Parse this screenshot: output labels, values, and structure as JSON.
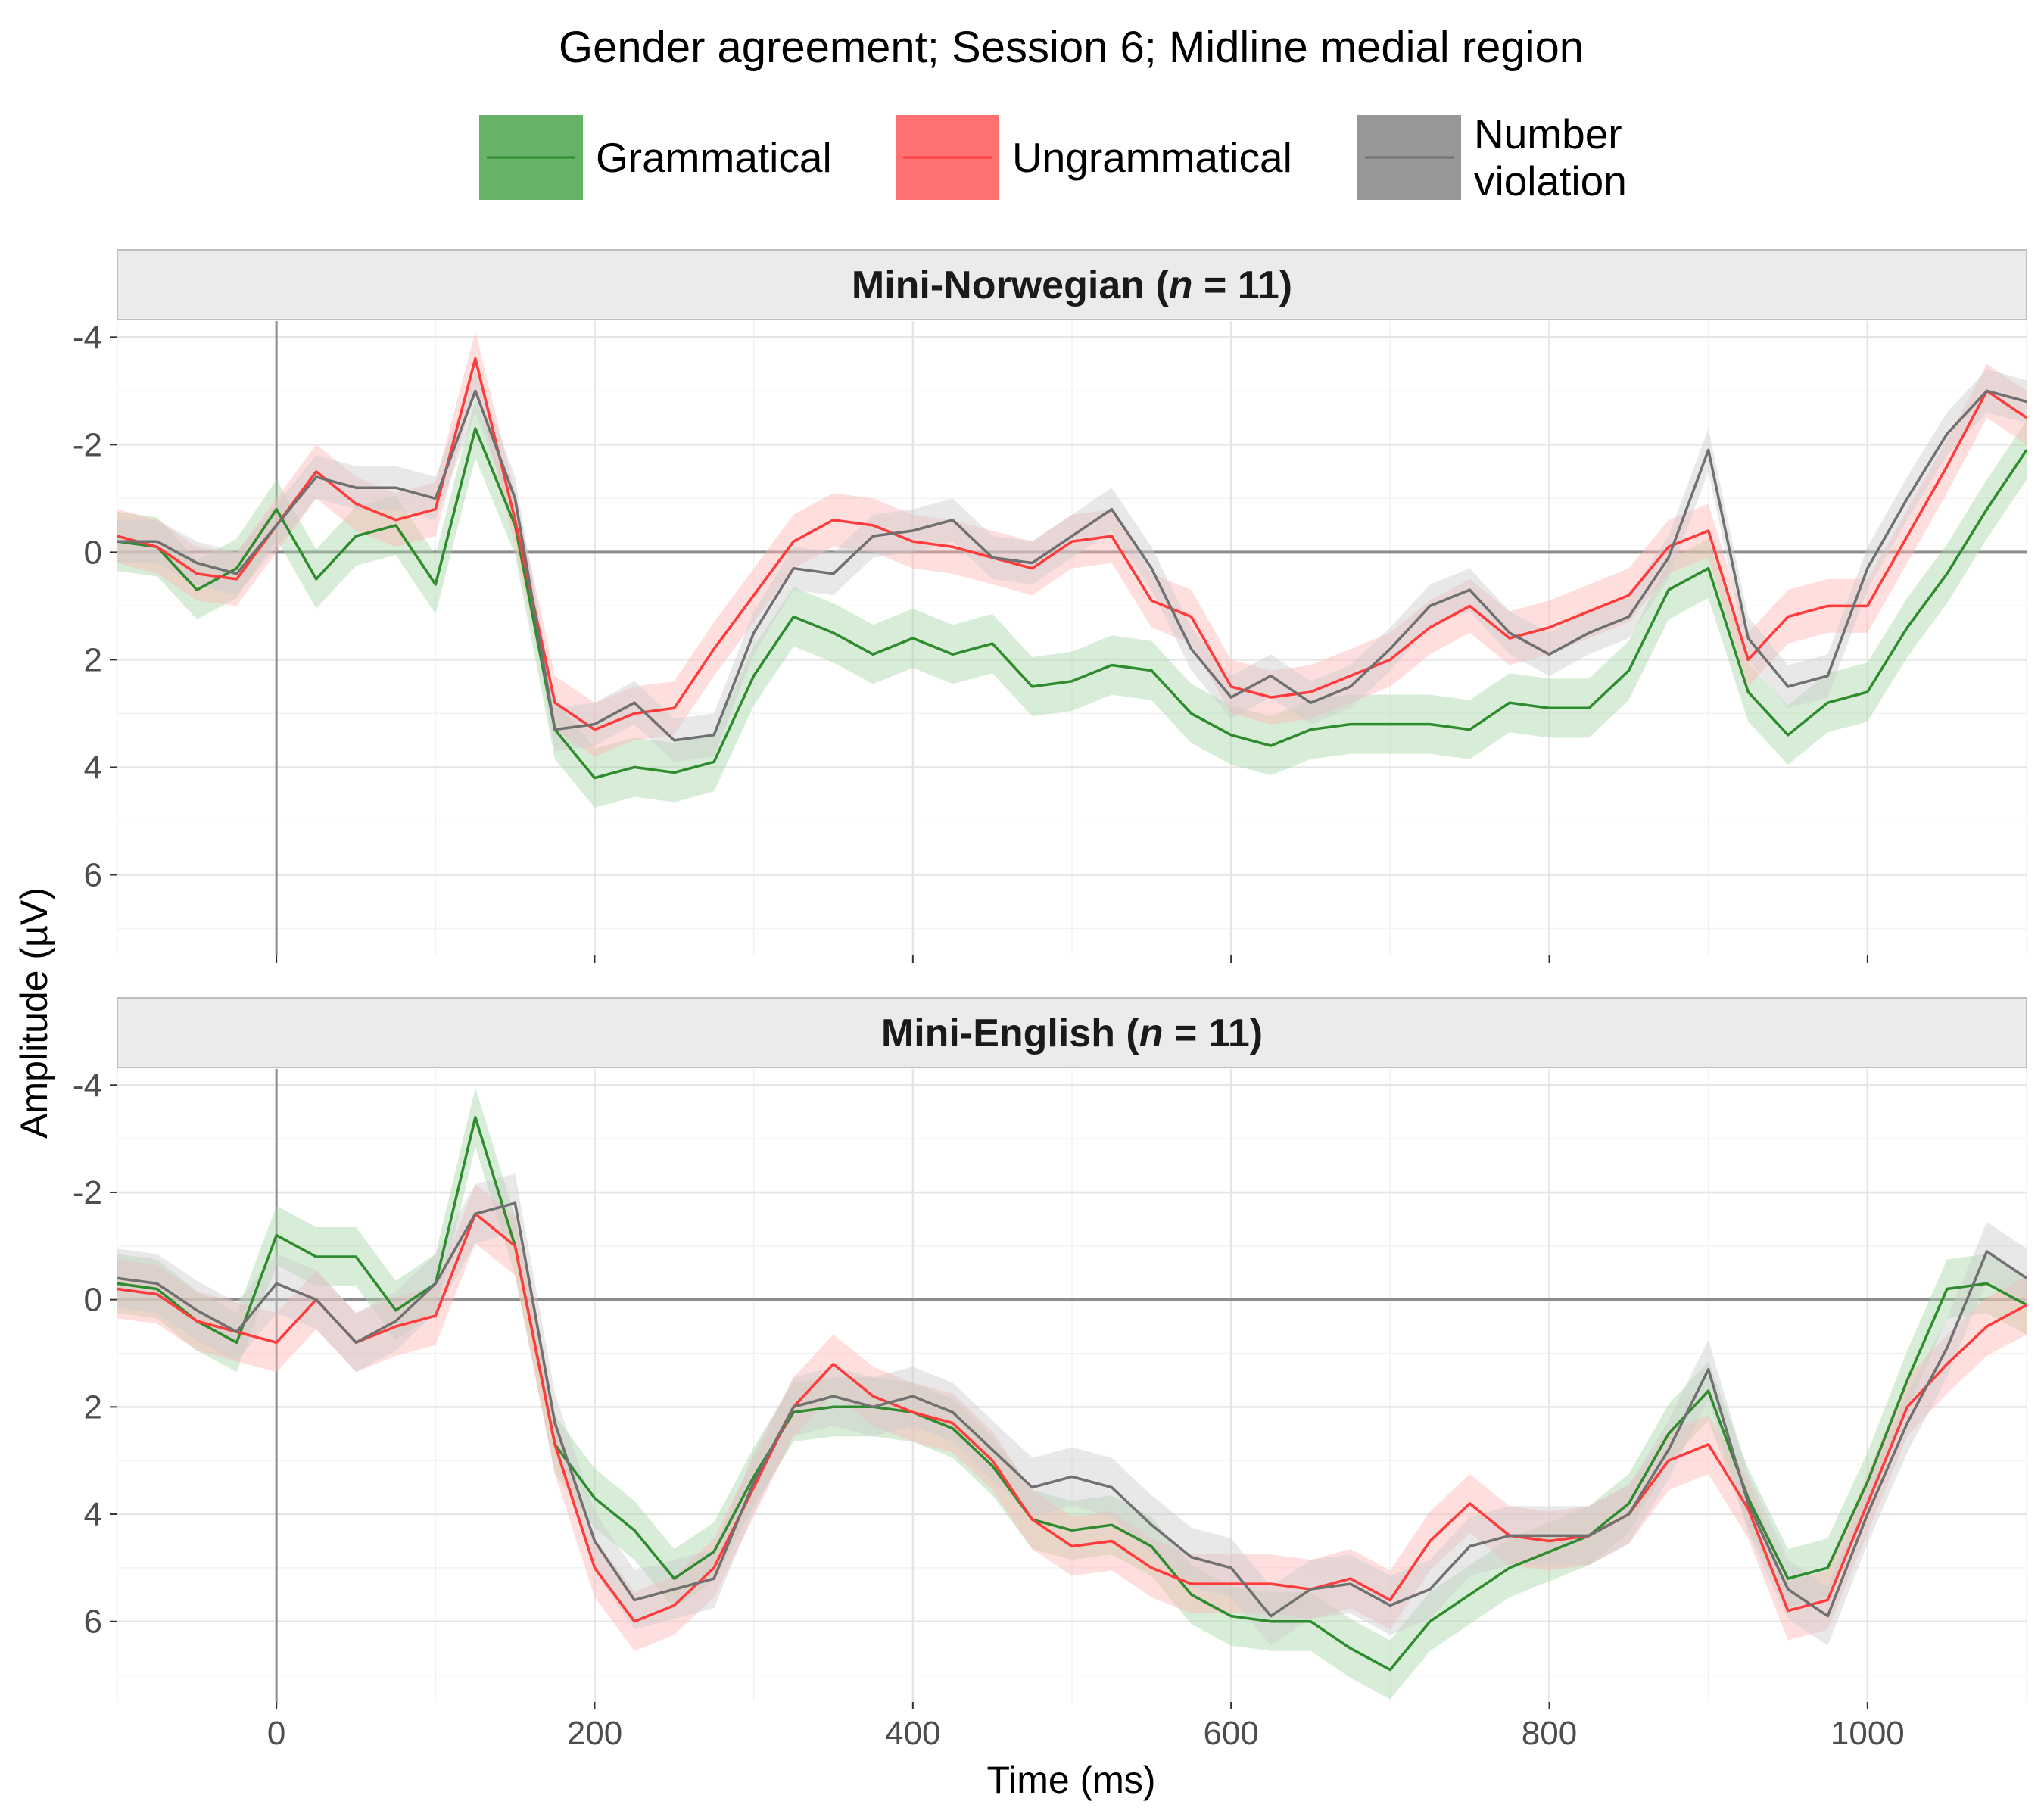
{
  "chart_data": {
    "type": "line",
    "title": "Gender agreement; Session 6; Midline medial region",
    "xlabel": "Time (ms)",
    "ylabel": "Amplitude (µV)",
    "xlim": [
      -100,
      1100
    ],
    "ylim_reversed": [
      -4.3,
      7.5
    ],
    "y_axis_reversed": true,
    "x_ticks": [
      0,
      200,
      400,
      600,
      800,
      1000
    ],
    "y_ticks": [
      -4,
      -2,
      0,
      2,
      4,
      6
    ],
    "grid": true,
    "legend_position": "top",
    "colors": {
      "Grammatical": "#2e8b2e",
      "Ungrammatical": "#ff3b3b",
      "Number violation": "#707070"
    },
    "ribbon_colors": {
      "Grammatical": "#a7d6a7",
      "Ungrammatical": "#ffb6b6",
      "Number violation": "#cdcdcd"
    },
    "legend": [
      {
        "name": "Grammatical",
        "label_lines": [
          "Grammatical"
        ],
        "key_fill": "#66b266",
        "line_color": "#2e8b2e"
      },
      {
        "name": "Ungrammatical",
        "label_lines": [
          "Ungrammatical"
        ],
        "key_fill": "#ff7070",
        "line_color": "#ff3b3b"
      },
      {
        "name": "Number violation",
        "label_lines": [
          "Number",
          "violation"
        ],
        "key_fill": "#979797",
        "line_color": "#707070"
      }
    ],
    "x": [
      -100,
      -75,
      -50,
      -25,
      0,
      25,
      50,
      75,
      100,
      125,
      150,
      175,
      200,
      225,
      250,
      275,
      300,
      325,
      350,
      375,
      400,
      425,
      450,
      475,
      500,
      525,
      550,
      575,
      600,
      625,
      650,
      675,
      700,
      725,
      750,
      775,
      800,
      825,
      850,
      875,
      900,
      925,
      950,
      975,
      1000,
      1025,
      1050,
      1075,
      1100
    ],
    "panels": [
      {
        "strip_prefix": "Mini-Norwegian (",
        "strip_n": "n",
        "strip_suffix": " = 11)",
        "series": [
          {
            "name": "Grammatical",
            "ci": 0.55,
            "values": [
              -0.2,
              -0.1,
              0.7,
              0.3,
              -0.8,
              0.5,
              -0.3,
              -0.5,
              0.6,
              -2.3,
              -0.5,
              3.3,
              4.2,
              4.0,
              4.1,
              3.9,
              2.3,
              1.2,
              1.5,
              1.9,
              1.6,
              1.9,
              1.7,
              2.5,
              2.4,
              2.1,
              2.2,
              3.0,
              3.4,
              3.6,
              3.3,
              3.2,
              3.2,
              3.2,
              3.3,
              2.8,
              2.9,
              2.9,
              2.2,
              0.7,
              0.3,
              2.6,
              3.4,
              2.8,
              2.6,
              1.4,
              0.4,
              -0.8,
              -1.9
            ]
          },
          {
            "name": "Ungrammatical",
            "ci": 0.5,
            "values": [
              -0.3,
              -0.1,
              0.4,
              0.5,
              -0.5,
              -1.5,
              -0.9,
              -0.6,
              -0.8,
              -3.6,
              -0.6,
              2.8,
              3.3,
              3.0,
              2.9,
              1.8,
              0.8,
              -0.2,
              -0.6,
              -0.5,
              -0.2,
              -0.1,
              0.1,
              0.3,
              -0.2,
              -0.3,
              0.9,
              1.2,
              2.5,
              2.7,
              2.6,
              2.3,
              2.0,
              1.4,
              1.0,
              1.6,
              1.4,
              1.1,
              0.8,
              -0.1,
              -0.4,
              2.0,
              1.2,
              1.0,
              1.0,
              -0.3,
              -1.6,
              -3.0,
              -2.5
            ]
          },
          {
            "name": "Number violation",
            "ci": 0.4,
            "values": [
              -0.2,
              -0.2,
              0.2,
              0.4,
              -0.5,
              -1.4,
              -1.2,
              -1.2,
              -1.0,
              -3.0,
              -1.0,
              3.3,
              3.2,
              2.8,
              3.5,
              3.4,
              1.5,
              0.3,
              0.4,
              -0.3,
              -0.4,
              -0.6,
              0.1,
              0.2,
              -0.3,
              -0.8,
              0.3,
              1.8,
              2.7,
              2.3,
              2.8,
              2.5,
              1.8,
              1.0,
              0.7,
              1.5,
              1.9,
              1.5,
              1.2,
              0.1,
              -1.9,
              1.6,
              2.5,
              2.3,
              0.3,
              -1.0,
              -2.2,
              -3.0,
              -2.8
            ]
          }
        ]
      },
      {
        "strip_prefix": "Mini-English (",
        "strip_n": "n",
        "strip_suffix": " = 11)",
        "series": [
          {
            "name": "Grammatical",
            "ci": 0.55,
            "values": [
              -0.3,
              -0.2,
              0.4,
              0.8,
              -1.2,
              -0.8,
              -0.8,
              0.2,
              -0.3,
              -3.4,
              -1.0,
              2.7,
              3.7,
              4.3,
              5.2,
              4.7,
              3.3,
              2.1,
              2.0,
              2.0,
              2.1,
              2.4,
              3.1,
              4.1,
              4.3,
              4.2,
              4.6,
              5.5,
              5.9,
              6.0,
              6.0,
              6.5,
              6.9,
              6.0,
              5.5,
              5.0,
              4.7,
              4.4,
              3.8,
              2.5,
              1.7,
              3.7,
              5.2,
              5.0,
              3.4,
              1.5,
              -0.2,
              -0.3,
              0.1
            ]
          },
          {
            "name": "Ungrammatical",
            "ci": 0.55,
            "values": [
              -0.2,
              -0.1,
              0.4,
              0.6,
              0.8,
              0.0,
              0.8,
              0.5,
              0.3,
              -1.6,
              -1.0,
              2.7,
              5.0,
              6.0,
              5.7,
              5.0,
              3.5,
              2.0,
              1.2,
              1.8,
              2.1,
              2.3,
              3.0,
              4.1,
              4.6,
              4.5,
              5.0,
              5.3,
              5.3,
              5.3,
              5.4,
              5.2,
              5.6,
              4.5,
              3.8,
              4.4,
              4.5,
              4.4,
              4.0,
              3.0,
              2.7,
              3.9,
              5.8,
              5.6,
              3.8,
              2.0,
              1.2,
              0.5,
              0.1
            ]
          },
          {
            "name": "Number violation",
            "ci": 0.55,
            "values": [
              -0.4,
              -0.3,
              0.2,
              0.6,
              -0.3,
              0.0,
              0.8,
              0.4,
              -0.3,
              -1.6,
              -1.8,
              2.3,
              4.5,
              5.6,
              5.4,
              5.2,
              3.4,
              2.0,
              1.8,
              2.0,
              1.8,
              2.1,
              2.8,
              3.5,
              3.3,
              3.5,
              4.2,
              4.8,
              5.0,
              5.9,
              5.4,
              5.3,
              5.7,
              5.4,
              4.6,
              4.4,
              4.4,
              4.4,
              4.0,
              2.8,
              1.3,
              3.8,
              5.4,
              5.9,
              4.0,
              2.3,
              0.9,
              -0.9,
              -0.4
            ]
          }
        ]
      }
    ]
  }
}
